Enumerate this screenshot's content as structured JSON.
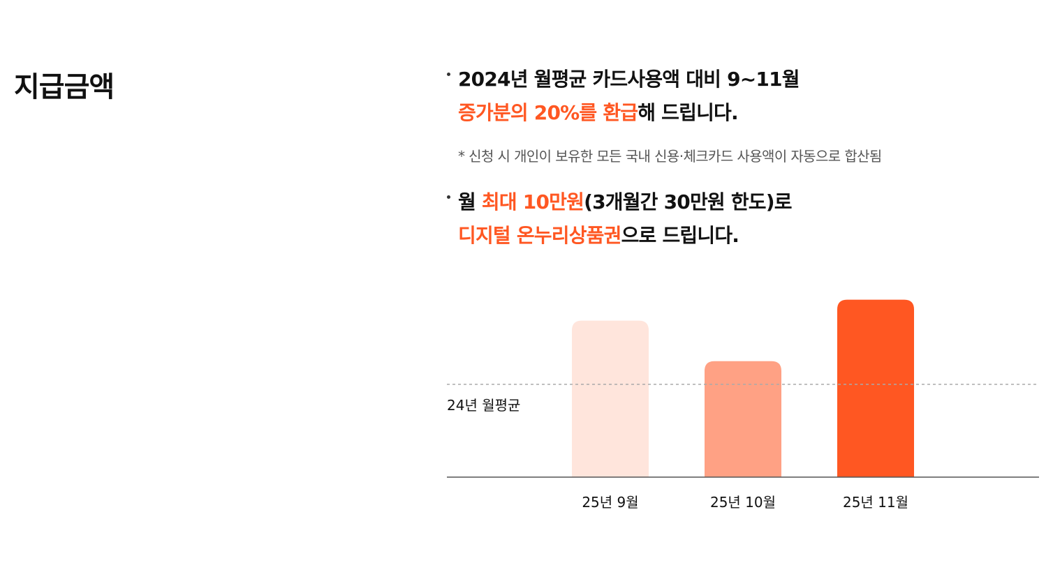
{
  "section": {
    "title": "지급금액"
  },
  "bullets": [
    {
      "line1": {
        "text": "2024년 월평균 카드사용액 대비 9~11월"
      },
      "line2": {
        "accent": "증가분의 20%를 환급",
        "rest": "해 드립니다."
      }
    },
    {
      "line1": {
        "pre": "월 ",
        "accent": "최대 10만원",
        "rest": "(3개월간 30만원 한도)로"
      },
      "line2": {
        "accent": "디지털 온누리상품권",
        "rest": "으로 드립니다."
      }
    }
  ],
  "footnote": "* 신청 시 개인이 보유한 모든 국내 신용·체크카드 사용액이 자동으로 합산됨",
  "chart_data": {
    "type": "bar",
    "categories": [
      "25년 9월",
      "25년 10월",
      "25년 11월"
    ],
    "values": [
      1.35,
      1.0,
      1.53
    ],
    "reference_line": {
      "label": "24년 월평균",
      "value": 0.8
    },
    "ylim": [
      0,
      1.6
    ],
    "bar_colors": [
      "#ffe5dc",
      "#ffa184",
      "#ff5722"
    ],
    "grid": false,
    "legend": "none"
  },
  "colors": {
    "accent": "#ff5722",
    "text": "#111111",
    "muted": "#555555",
    "axis": "#555555",
    "dashed_line": "#aaaaaa"
  }
}
